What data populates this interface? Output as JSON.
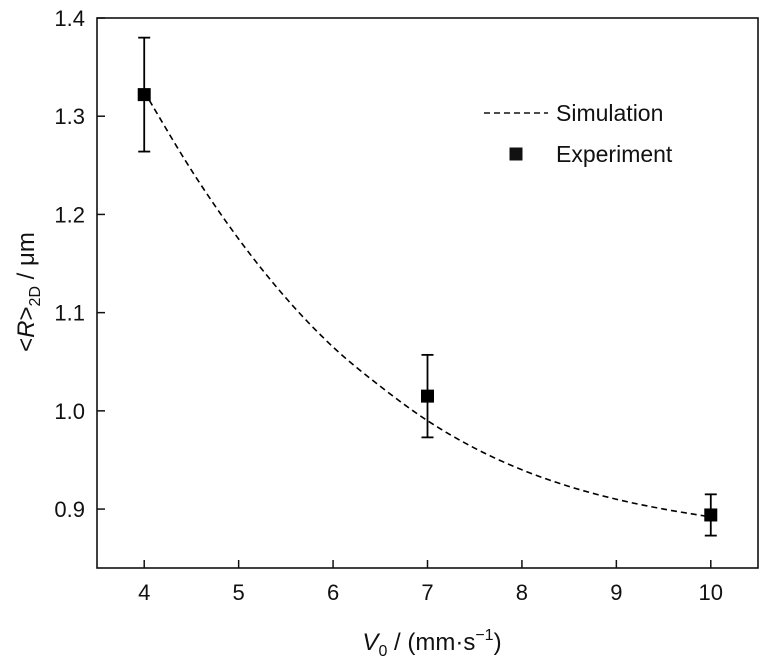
{
  "chart_data": {
    "type": "scatter",
    "xlim": [
      3.5,
      10.5
    ],
    "ylim": [
      0.84,
      1.4
    ],
    "x_ticks": [
      4,
      5,
      6,
      7,
      8,
      9,
      10
    ],
    "y_ticks": [
      0.9,
      1.0,
      1.1,
      1.2,
      1.3,
      1.4
    ],
    "x_tick_labels": [
      "4",
      "5",
      "6",
      "7",
      "8",
      "9",
      "10"
    ],
    "y_tick_labels": [
      "0.9",
      "1.0",
      "1.1",
      "1.2",
      "1.3",
      "1.4"
    ],
    "xlabel": {
      "symbol": "V",
      "subscript": "0",
      "rest": " / (mm·s",
      "superscript": "−1",
      "close": ")"
    },
    "ylabel": {
      "open": "<",
      "symbol": "R",
      "close": ">",
      "subscript": "2D",
      "rest": " / μm"
    },
    "legend": {
      "position": "top-right",
      "entries": [
        "Simulation",
        "Experiment"
      ]
    },
    "series": [
      {
        "name": "Simulation",
        "style": "dashed-line",
        "color": "#000000",
        "x": [
          4.0,
          4.5,
          5.0,
          5.5,
          6.0,
          6.5,
          7.0,
          7.5,
          8.0,
          8.5,
          9.0,
          9.5,
          10.0
        ],
        "y": [
          1.325,
          1.245,
          1.175,
          1.115,
          1.065,
          1.025,
          0.99,
          0.962,
          0.94,
          0.923,
          0.91,
          0.9,
          0.892
        ]
      },
      {
        "name": "Experiment",
        "style": "square-markers-with-error-bars",
        "color": "#000000",
        "x": [
          4,
          7,
          10
        ],
        "y": [
          1.322,
          1.015,
          0.894
        ],
        "error": [
          0.058,
          0.042,
          0.021
        ]
      }
    ]
  }
}
